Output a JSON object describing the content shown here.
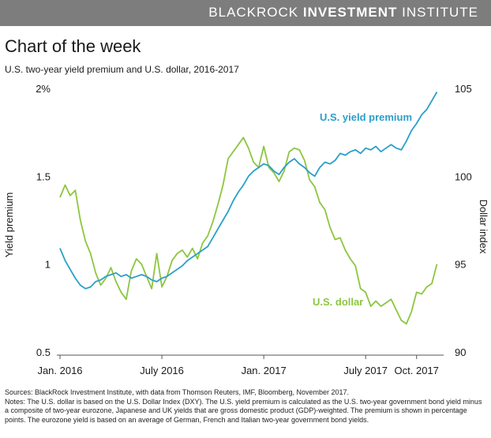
{
  "header": {
    "brand_light": "BLACKROCK ",
    "brand_bold": "INVESTMENT",
    "brand_light2": " INSTITUTE",
    "title": "Chart of the week",
    "subtitle": "U.S. two-year yield premium and U.S. dollar, 2016-2017"
  },
  "colors": {
    "yield": "#2a9fc9",
    "dollar": "#8cc63f",
    "axis": "#555555",
    "brand_bar": "#7d7d7d"
  },
  "chart_data": {
    "type": "line",
    "left_axis": {
      "label": "Yield premium",
      "range": [
        0.5,
        2.0
      ],
      "ticks": [
        "0.5",
        "1",
        "1.5",
        "2%"
      ],
      "tick_values": [
        0.5,
        1.0,
        1.5,
        2.0
      ]
    },
    "right_axis": {
      "label": "Dollar index",
      "range": [
        90,
        105
      ],
      "ticks": [
        "90",
        "95",
        "100",
        "105"
      ],
      "tick_values": [
        90,
        95,
        100,
        105
      ]
    },
    "x_ticks": [
      "Jan. 2016",
      "July 2016",
      "Jan. 2017",
      "July 2017",
      "Oct. 2017"
    ],
    "x_tick_values": [
      0,
      6,
      12,
      18,
      21
    ],
    "x_range": [
      0,
      22.5
    ],
    "series": [
      {
        "name": "U.S. yield premium",
        "axis": "left",
        "label": "U.S. yield premium",
        "x": [
          0,
          0.3,
          0.6,
          0.9,
          1.2,
          1.5,
          1.8,
          2.1,
          2.4,
          2.7,
          3.0,
          3.3,
          3.6,
          3.9,
          4.2,
          4.5,
          4.8,
          5.1,
          5.4,
          5.7,
          6.0,
          6.3,
          6.6,
          6.9,
          7.2,
          7.5,
          7.8,
          8.1,
          8.4,
          8.7,
          9.0,
          9.3,
          9.6,
          9.9,
          10.2,
          10.5,
          10.8,
          11.1,
          11.4,
          11.7,
          12.0,
          12.3,
          12.6,
          12.9,
          13.2,
          13.5,
          13.8,
          14.1,
          14.4,
          14.7,
          15.0,
          15.3,
          15.6,
          15.9,
          16.2,
          16.5,
          16.8,
          17.1,
          17.4,
          17.7,
          18.0,
          18.3,
          18.6,
          18.9,
          19.2,
          19.5,
          19.8,
          20.1,
          20.4,
          20.7,
          21.0,
          21.3,
          21.6,
          21.9,
          22.2
        ],
        "y": [
          1.09,
          1.02,
          0.97,
          0.92,
          0.88,
          0.86,
          0.87,
          0.9,
          0.91,
          0.93,
          0.94,
          0.95,
          0.93,
          0.94,
          0.92,
          0.93,
          0.94,
          0.93,
          0.91,
          0.9,
          0.92,
          0.93,
          0.95,
          0.97,
          0.99,
          1.02,
          1.04,
          1.06,
          1.08,
          1.1,
          1.15,
          1.2,
          1.25,
          1.3,
          1.36,
          1.41,
          1.45,
          1.5,
          1.53,
          1.55,
          1.57,
          1.56,
          1.53,
          1.51,
          1.55,
          1.58,
          1.6,
          1.57,
          1.55,
          1.52,
          1.5,
          1.55,
          1.58,
          1.57,
          1.59,
          1.63,
          1.62,
          1.64,
          1.65,
          1.63,
          1.66,
          1.65,
          1.67,
          1.64,
          1.66,
          1.68,
          1.66,
          1.65,
          1.7,
          1.76,
          1.8,
          1.85,
          1.88,
          1.93,
          1.98
        ]
      },
      {
        "name": "U.S. dollar",
        "axis": "right",
        "label": "U.S. dollar",
        "x": [
          0,
          0.3,
          0.6,
          0.9,
          1.2,
          1.5,
          1.8,
          2.1,
          2.4,
          2.7,
          3.0,
          3.3,
          3.6,
          3.9,
          4.2,
          4.5,
          4.8,
          5.1,
          5.4,
          5.7,
          6.0,
          6.3,
          6.6,
          6.9,
          7.2,
          7.5,
          7.8,
          8.1,
          8.4,
          8.7,
          9.0,
          9.3,
          9.6,
          9.9,
          10.2,
          10.5,
          10.8,
          11.1,
          11.4,
          11.7,
          12.0,
          12.3,
          12.6,
          12.9,
          13.2,
          13.5,
          13.8,
          14.1,
          14.4,
          14.7,
          15.0,
          15.3,
          15.6,
          15.9,
          16.2,
          16.5,
          16.8,
          17.1,
          17.4,
          17.7,
          18.0,
          18.3,
          18.6,
          18.9,
          19.2,
          19.5,
          19.8,
          20.1,
          20.4,
          20.7,
          21.0,
          21.3,
          21.6,
          21.9,
          22.2
        ],
        "y": [
          98.8,
          99.5,
          98.9,
          99.2,
          97.5,
          96.3,
          95.6,
          94.5,
          93.8,
          94.2,
          94.8,
          94.0,
          93.4,
          93.0,
          94.6,
          95.3,
          95.0,
          94.3,
          93.6,
          95.6,
          93.7,
          94.3,
          95.2,
          95.6,
          95.8,
          95.4,
          95.9,
          95.3,
          96.2,
          96.6,
          97.4,
          98.4,
          99.5,
          101.0,
          101.4,
          101.8,
          102.2,
          101.6,
          100.8,
          100.5,
          101.7,
          100.5,
          100.2,
          99.7,
          100.3,
          101.4,
          101.6,
          101.5,
          100.9,
          99.8,
          99.4,
          98.5,
          98.1,
          97.1,
          96.4,
          96.5,
          95.8,
          95.3,
          94.9,
          93.6,
          93.4,
          92.6,
          92.9,
          92.6,
          92.8,
          93.0,
          92.4,
          91.8,
          91.6,
          92.3,
          93.4,
          93.3,
          93.7,
          93.9,
          95.0
        ]
      }
    ]
  },
  "notes": {
    "sources": "Sources: BlackRock Investment Institute, with data from Thomson Reuters, IMF, Bloomberg, November 2017.",
    "notes": "Notes: The U.S. dollar is based on the U.S. Dollar Index (DXY). The U.S. yield premium is calculated as the U.S. two-year government bond yield minus a composite of two-year eurozone, Japanese and UK yields that are gross domestic product (GDP)-weighted. The premium is shown in percentage points. The eurozone yield is based on an average of German, French and Italian two-year government bond yields."
  }
}
